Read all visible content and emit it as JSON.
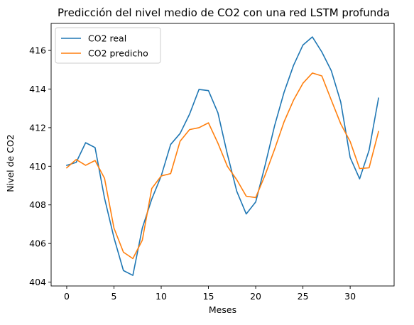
{
  "chart_data": {
    "type": "line",
    "title": "Predicción del nivel medio de CO2 con una red LSTM profunda",
    "xlabel": "Meses",
    "ylabel": "Nivel de CO2",
    "xlim": [
      -1.65,
      34.65
    ],
    "ylim": [
      403.8,
      417.4
    ],
    "xticks": [
      0,
      5,
      10,
      15,
      20,
      25,
      30
    ],
    "yticks": [
      404,
      406,
      408,
      410,
      412,
      414,
      416
    ],
    "grid": false,
    "legend_position": "top-left",
    "x": [
      0,
      1,
      2,
      3,
      4,
      5,
      6,
      7,
      8,
      9,
      10,
      11,
      12,
      13,
      14,
      15,
      16,
      17,
      18,
      19,
      20,
      21,
      22,
      23,
      24,
      25,
      26,
      27,
      28,
      29,
      30,
      31,
      32,
      33
    ],
    "series": [
      {
        "name": "CO2 real",
        "color": "#1f77b4",
        "values": [
          410.05,
          410.2,
          411.22,
          410.97,
          408.35,
          406.3,
          404.6,
          404.35,
          406.8,
          408.3,
          409.5,
          411.13,
          411.7,
          412.7,
          413.98,
          413.92,
          412.77,
          410.63,
          408.7,
          407.53,
          408.15,
          410.06,
          412.1,
          413.83,
          415.22,
          416.28,
          416.7,
          415.92,
          414.95,
          413.33,
          410.45,
          409.35,
          410.83,
          413.53
        ]
      },
      {
        "name": "CO2 predicho",
        "color": "#ff7f0e",
        "values": [
          409.92,
          410.35,
          410.05,
          410.3,
          409.38,
          406.8,
          405.55,
          405.22,
          406.17,
          408.85,
          409.5,
          409.62,
          411.3,
          411.9,
          412.0,
          412.25,
          411.2,
          410.0,
          409.3,
          408.45,
          408.38,
          409.55,
          410.88,
          412.3,
          413.42,
          414.3,
          414.83,
          414.68,
          413.43,
          412.2,
          411.28,
          409.88,
          409.92,
          411.8
        ]
      }
    ]
  }
}
